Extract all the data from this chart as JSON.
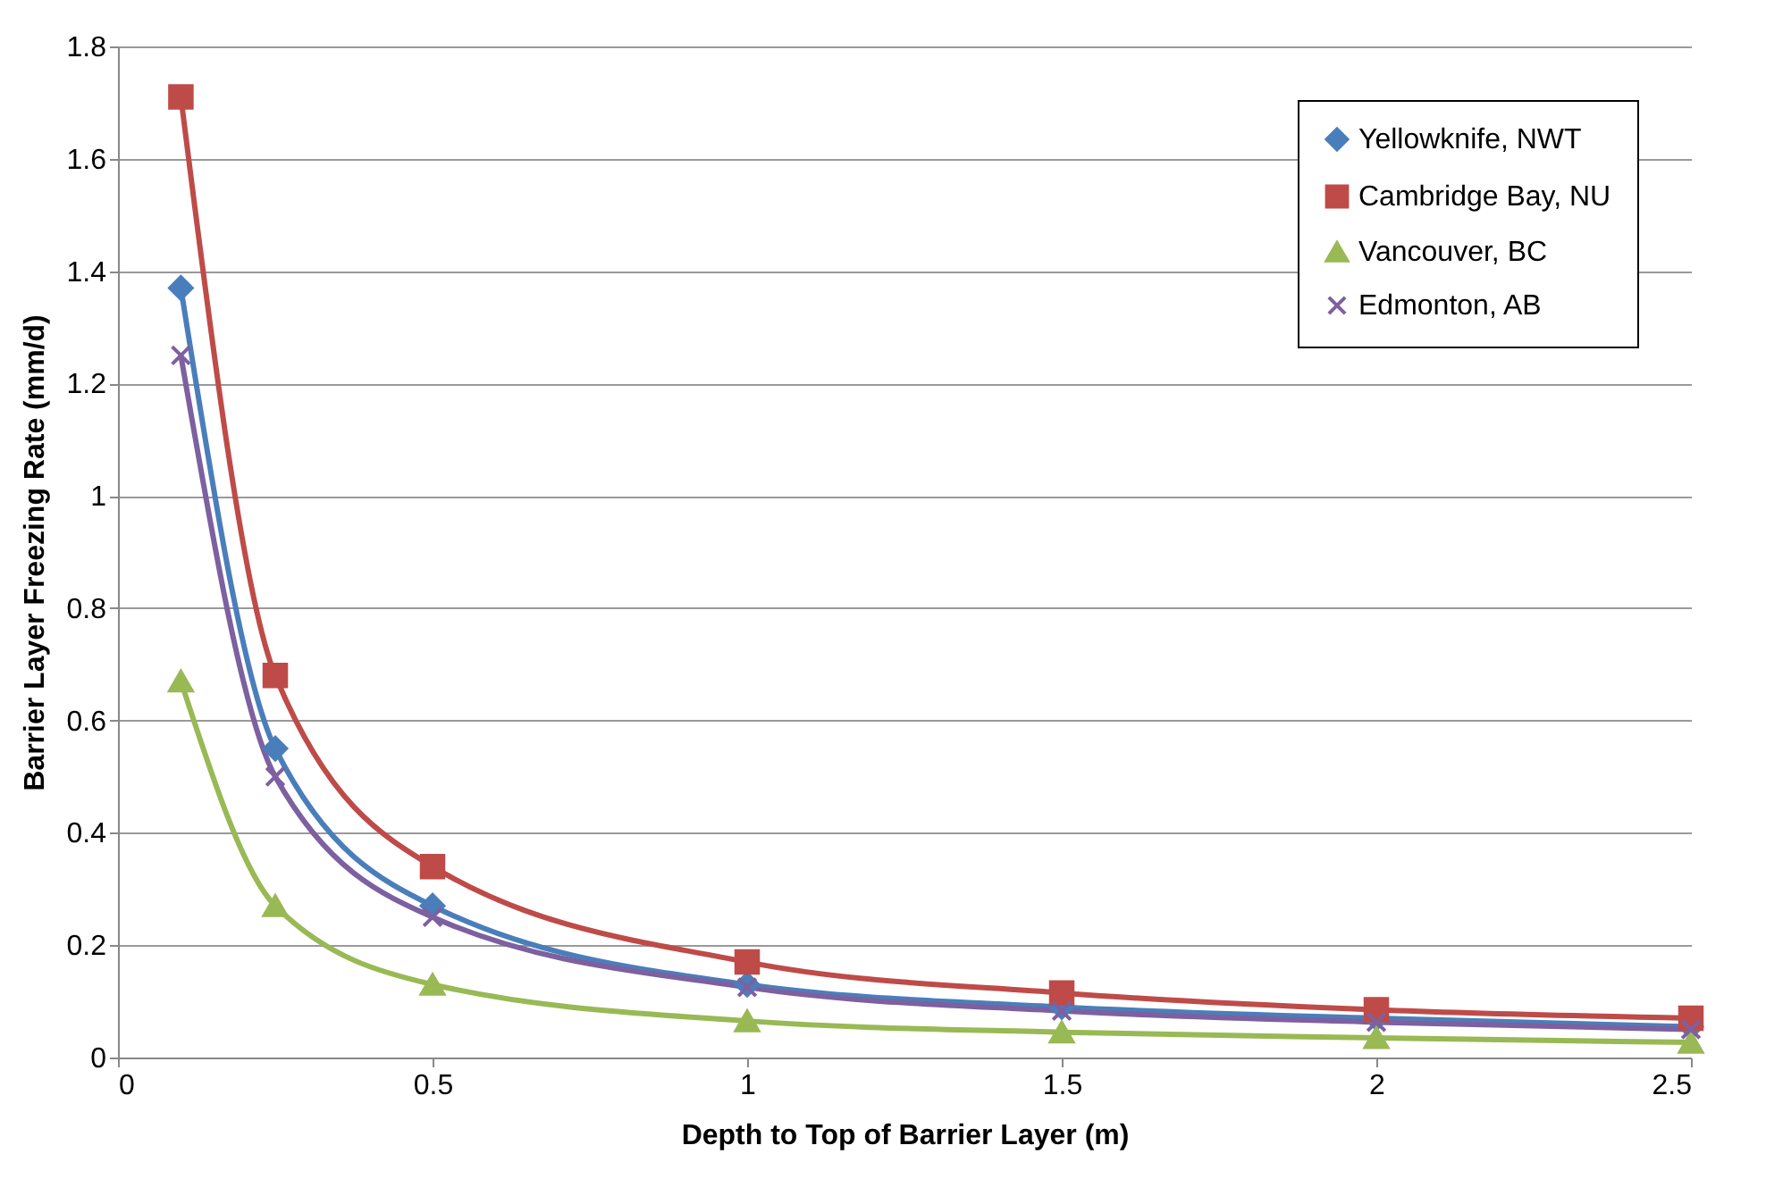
{
  "chart_data": {
    "type": "line",
    "xlabel": "Depth to Top of Barrier Layer (m)",
    "ylabel": "Barrier Layer Freezing Rate (mm/d)",
    "x": [
      0.1,
      0.25,
      0.5,
      1,
      1.5,
      2,
      2.5
    ],
    "series": [
      {
        "name": "Yellowknife, NWT",
        "color": "#4a7ebb",
        "marker": "diamond",
        "values": [
          1.37,
          0.55,
          0.27,
          0.13,
          0.09,
          0.07,
          0.055
        ]
      },
      {
        "name": "Cambridge Bay, NU",
        "color": "#be4b48",
        "marker": "square",
        "values": [
          1.71,
          0.68,
          0.34,
          0.17,
          0.115,
          0.085,
          0.07
        ]
      },
      {
        "name": "Vancouver, BC",
        "color": "#98b954",
        "marker": "triangle",
        "values": [
          0.67,
          0.27,
          0.13,
          0.065,
          0.045,
          0.035,
          0.027
        ]
      },
      {
        "name": "Edmonton, AB",
        "color": "#7d60a0",
        "marker": "cross",
        "values": [
          1.25,
          0.5,
          0.25,
          0.125,
          0.083,
          0.063,
          0.05
        ]
      }
    ],
    "xlim": [
      0,
      2.5
    ],
    "xticks": [
      0,
      0.5,
      1,
      1.5,
      2,
      2.5
    ],
    "ylim": [
      0,
      1.8
    ],
    "yticks": [
      0,
      0.2,
      0.4,
      0.6,
      0.8,
      1,
      1.2,
      1.4,
      1.6,
      1.8
    ],
    "grid": "y",
    "legend": "top right",
    "line_style": "solid"
  }
}
